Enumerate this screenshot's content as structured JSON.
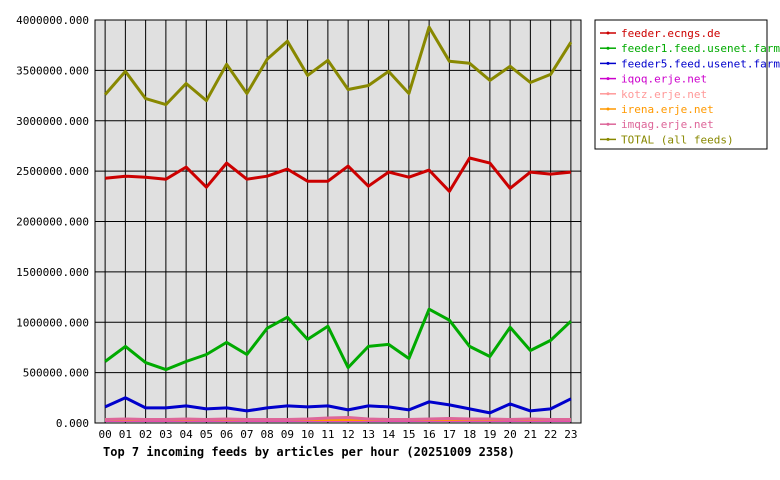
{
  "chart_data": {
    "type": "line",
    "title": "Top 7 incoming feeds by articles per hour (20251009 2358)",
    "xlabel": "",
    "ylabel": "",
    "categories": [
      "00",
      "01",
      "02",
      "03",
      "04",
      "05",
      "06",
      "07",
      "08",
      "09",
      "10",
      "11",
      "12",
      "13",
      "14",
      "15",
      "16",
      "17",
      "18",
      "19",
      "20",
      "21",
      "22",
      "23"
    ],
    "ylim": [
      0,
      4000000
    ],
    "y_ticks": [
      0,
      500000,
      1000000,
      1500000,
      2000000,
      2500000,
      3000000,
      3500000,
      4000000
    ],
    "y_tick_labels": [
      "0.000",
      "500000.000",
      "1000000.000",
      "1500000.000",
      "2000000.000",
      "2500000.000",
      "3000000.000",
      "3500000.000",
      "4000000.000"
    ],
    "grid": true,
    "legend_position": "right",
    "series": [
      {
        "name": "feeder.ecngs.de",
        "color": "#cc0000",
        "values": [
          2430000,
          2450000,
          2440000,
          2420000,
          2540000,
          2340000,
          2580000,
          2420000,
          2450000,
          2520000,
          2400000,
          2400000,
          2550000,
          2350000,
          2490000,
          2440000,
          2510000,
          2300000,
          2630000,
          2580000,
          2330000,
          2490000,
          2470000,
          2490000
        ]
      },
      {
        "name": "feeder1.feed.usenet.farm",
        "color": "#00aa00",
        "values": [
          610000,
          760000,
          600000,
          530000,
          610000,
          680000,
          800000,
          680000,
          940000,
          1050000,
          830000,
          960000,
          550000,
          760000,
          780000,
          640000,
          1130000,
          1020000,
          760000,
          660000,
          950000,
          720000,
          820000,
          1010000
        ]
      },
      {
        "name": "feeder5.feed.usenet.farm",
        "color": "#0000cc",
        "values": [
          160000,
          250000,
          150000,
          150000,
          170000,
          140000,
          150000,
          120000,
          150000,
          170000,
          160000,
          170000,
          130000,
          170000,
          160000,
          130000,
          210000,
          180000,
          140000,
          100000,
          190000,
          120000,
          140000,
          240000
        ]
      },
      {
        "name": "iqoq.erje.net",
        "color": "#cc00cc",
        "values": [
          25000,
          25000,
          25000,
          25000,
          25000,
          25000,
          25000,
          25000,
          25000,
          25000,
          25000,
          25000,
          25000,
          25000,
          25000,
          25000,
          25000,
          25000,
          25000,
          25000,
          25000,
          25000,
          25000,
          25000
        ]
      },
      {
        "name": "kotz.erje.net",
        "color": "#ff9999",
        "values": [
          30000,
          30000,
          30000,
          30000,
          30000,
          30000,
          30000,
          30000,
          30000,
          30000,
          30000,
          30000,
          30000,
          30000,
          30000,
          30000,
          30000,
          30000,
          30000,
          30000,
          30000,
          30000,
          30000,
          30000
        ]
      },
      {
        "name": "irena.erje.net",
        "color": "#ff9900",
        "values": [
          35000,
          35000,
          35000,
          35000,
          35000,
          35000,
          35000,
          35000,
          35000,
          35000,
          35000,
          35000,
          35000,
          35000,
          35000,
          35000,
          35000,
          35000,
          35000,
          35000,
          35000,
          35000,
          35000,
          35000
        ]
      },
      {
        "name": "imqag.erje.net",
        "color": "#dd6699",
        "values": [
          35000,
          40000,
          35000,
          35000,
          40000,
          35000,
          40000,
          35000,
          35000,
          35000,
          40000,
          50000,
          55000,
          40000,
          35000,
          35000,
          40000,
          45000,
          40000,
          40000,
          35000,
          40000,
          35000,
          35000
        ]
      },
      {
        "name": "TOTAL (all feeds)",
        "color": "#888800",
        "values": [
          3260000,
          3490000,
          3220000,
          3160000,
          3370000,
          3200000,
          3560000,
          3270000,
          3610000,
          3790000,
          3450000,
          3600000,
          3310000,
          3350000,
          3490000,
          3270000,
          3930000,
          3590000,
          3570000,
          3400000,
          3540000,
          3380000,
          3460000,
          3780000
        ]
      }
    ]
  }
}
